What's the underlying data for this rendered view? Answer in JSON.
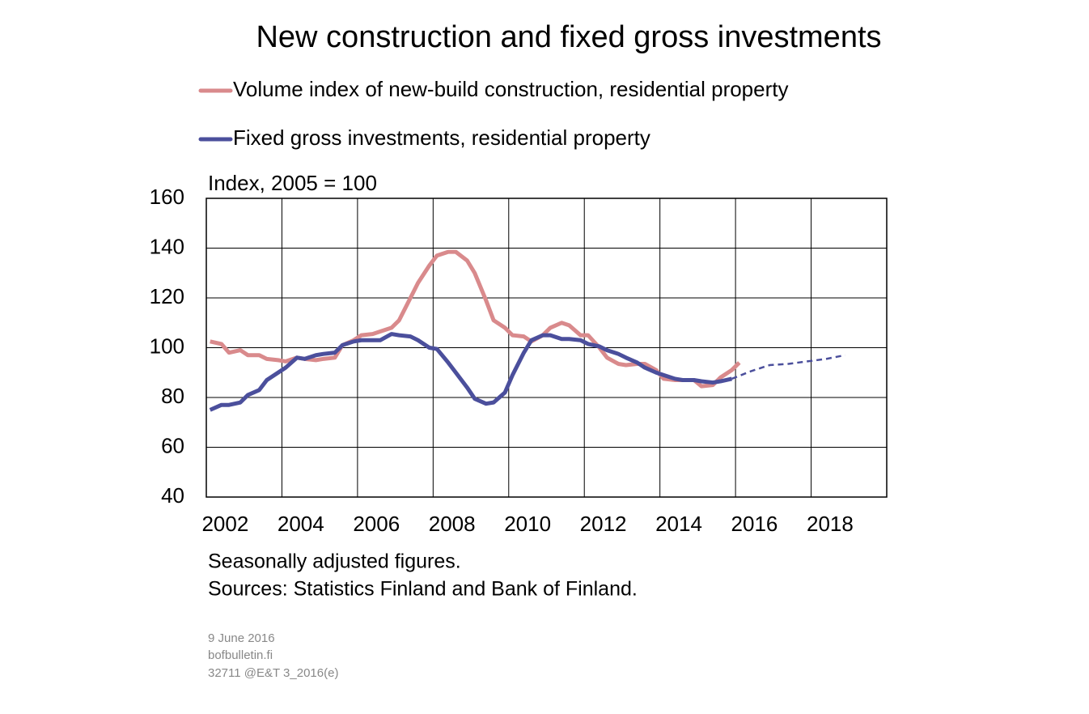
{
  "chart_data": {
    "type": "line",
    "title": "New construction and fixed gross investments",
    "y_label": "Index, 2005 = 100",
    "notes": [
      "Seasonally adjusted figures.",
      "Sources: Statistics Finland and Bank of Finland."
    ],
    "footer": [
      "9 June 2016",
      "bofbulletin.fi",
      "32711 @E&T 3_2016(e)"
    ],
    "xlim": [
      2002,
      2020
    ],
    "xticks": [
      2002,
      2004,
      2006,
      2008,
      2010,
      2012,
      2014,
      2016,
      2018
    ],
    "ylim": [
      40,
      160
    ],
    "yticks": [
      40,
      60,
      80,
      100,
      120,
      140,
      160
    ],
    "grid": true,
    "series": [
      {
        "name": "Volume index of new-build construction, residential property",
        "color": "#d98a8c",
        "x": [
          2002.1,
          2002.4,
          2002.6,
          2002.9,
          2003.1,
          2003.4,
          2003.6,
          2003.9,
          2004.1,
          2004.4,
          2004.6,
          2004.9,
          2005.1,
          2005.4,
          2005.6,
          2005.9,
          2006.1,
          2006.4,
          2006.6,
          2006.9,
          2007.1,
          2007.4,
          2007.6,
          2007.9,
          2008.1,
          2008.4,
          2008.6,
          2008.9,
          2009.1,
          2009.4,
          2009.6,
          2009.9,
          2010.1,
          2010.4,
          2010.6,
          2010.9,
          2011.1,
          2011.4,
          2011.6,
          2011.9,
          2012.1,
          2012.4,
          2012.6,
          2012.9,
          2013.1,
          2013.4,
          2013.6,
          2013.9,
          2014.1,
          2014.4,
          2014.6,
          2014.9,
          2015.1,
          2015.4,
          2015.6,
          2015.9,
          2016.1
        ],
        "values": [
          102.5,
          101.5,
          98,
          99,
          97,
          97,
          95.5,
          95,
          94.5,
          96,
          95.5,
          95,
          95.5,
          96,
          101,
          103,
          105,
          105.5,
          106.5,
          108,
          111,
          120,
          126,
          133,
          137,
          138.5,
          138.5,
          135,
          130,
          119,
          111,
          108,
          105,
          104.5,
          102.5,
          105,
          108,
          110,
          109,
          105,
          105,
          100,
          96,
          93.5,
          93,
          93.5,
          93.5,
          91,
          87.5,
          87,
          87,
          87,
          84.5,
          85,
          88,
          91,
          94
        ]
      },
      {
        "name": "Fixed gross investments, residential property",
        "color": "#4b4f9c",
        "x": [
          2002.1,
          2002.4,
          2002.6,
          2002.9,
          2003.1,
          2003.4,
          2003.6,
          2003.9,
          2004.1,
          2004.4,
          2004.6,
          2004.9,
          2005.1,
          2005.4,
          2005.6,
          2005.9,
          2006.1,
          2006.4,
          2006.6,
          2006.9,
          2007.1,
          2007.4,
          2007.6,
          2007.9,
          2008.1,
          2008.4,
          2008.6,
          2008.9,
          2009.1,
          2009.4,
          2009.6,
          2009.9,
          2010.1,
          2010.4,
          2010.6,
          2010.9,
          2011.1,
          2011.4,
          2011.6,
          2011.9,
          2012.1,
          2012.4,
          2012.6,
          2012.9,
          2013.1,
          2013.4,
          2013.6,
          2013.9,
          2014.1,
          2014.4,
          2014.6,
          2014.9,
          2015.1,
          2015.4,
          2015.6,
          2015.9
        ],
        "values": [
          75,
          77,
          77,
          78,
          81,
          83,
          87,
          90,
          92,
          96,
          95.5,
          97,
          97.5,
          98,
          101,
          102.5,
          103,
          103,
          103,
          105.5,
          105,
          104.5,
          103,
          100,
          99.5,
          94,
          90,
          84,
          79.5,
          77.5,
          78,
          82,
          89,
          98,
          103,
          105,
          105,
          103.5,
          103.5,
          103,
          101.5,
          100.5,
          99,
          97.5,
          96,
          94,
          92,
          90,
          89,
          87.5,
          87,
          87,
          86.5,
          86,
          86.5,
          87.5
        ]
      },
      {
        "color": "#4b4f9c",
        "dashed": true,
        "x": [
          2015.9,
          2016.4,
          2016.9,
          2017.4,
          2017.9,
          2018.4,
          2018.9
        ],
        "values": [
          87.5,
          90.5,
          93,
          93.5,
          94.5,
          95.5,
          97
        ]
      }
    ]
  }
}
